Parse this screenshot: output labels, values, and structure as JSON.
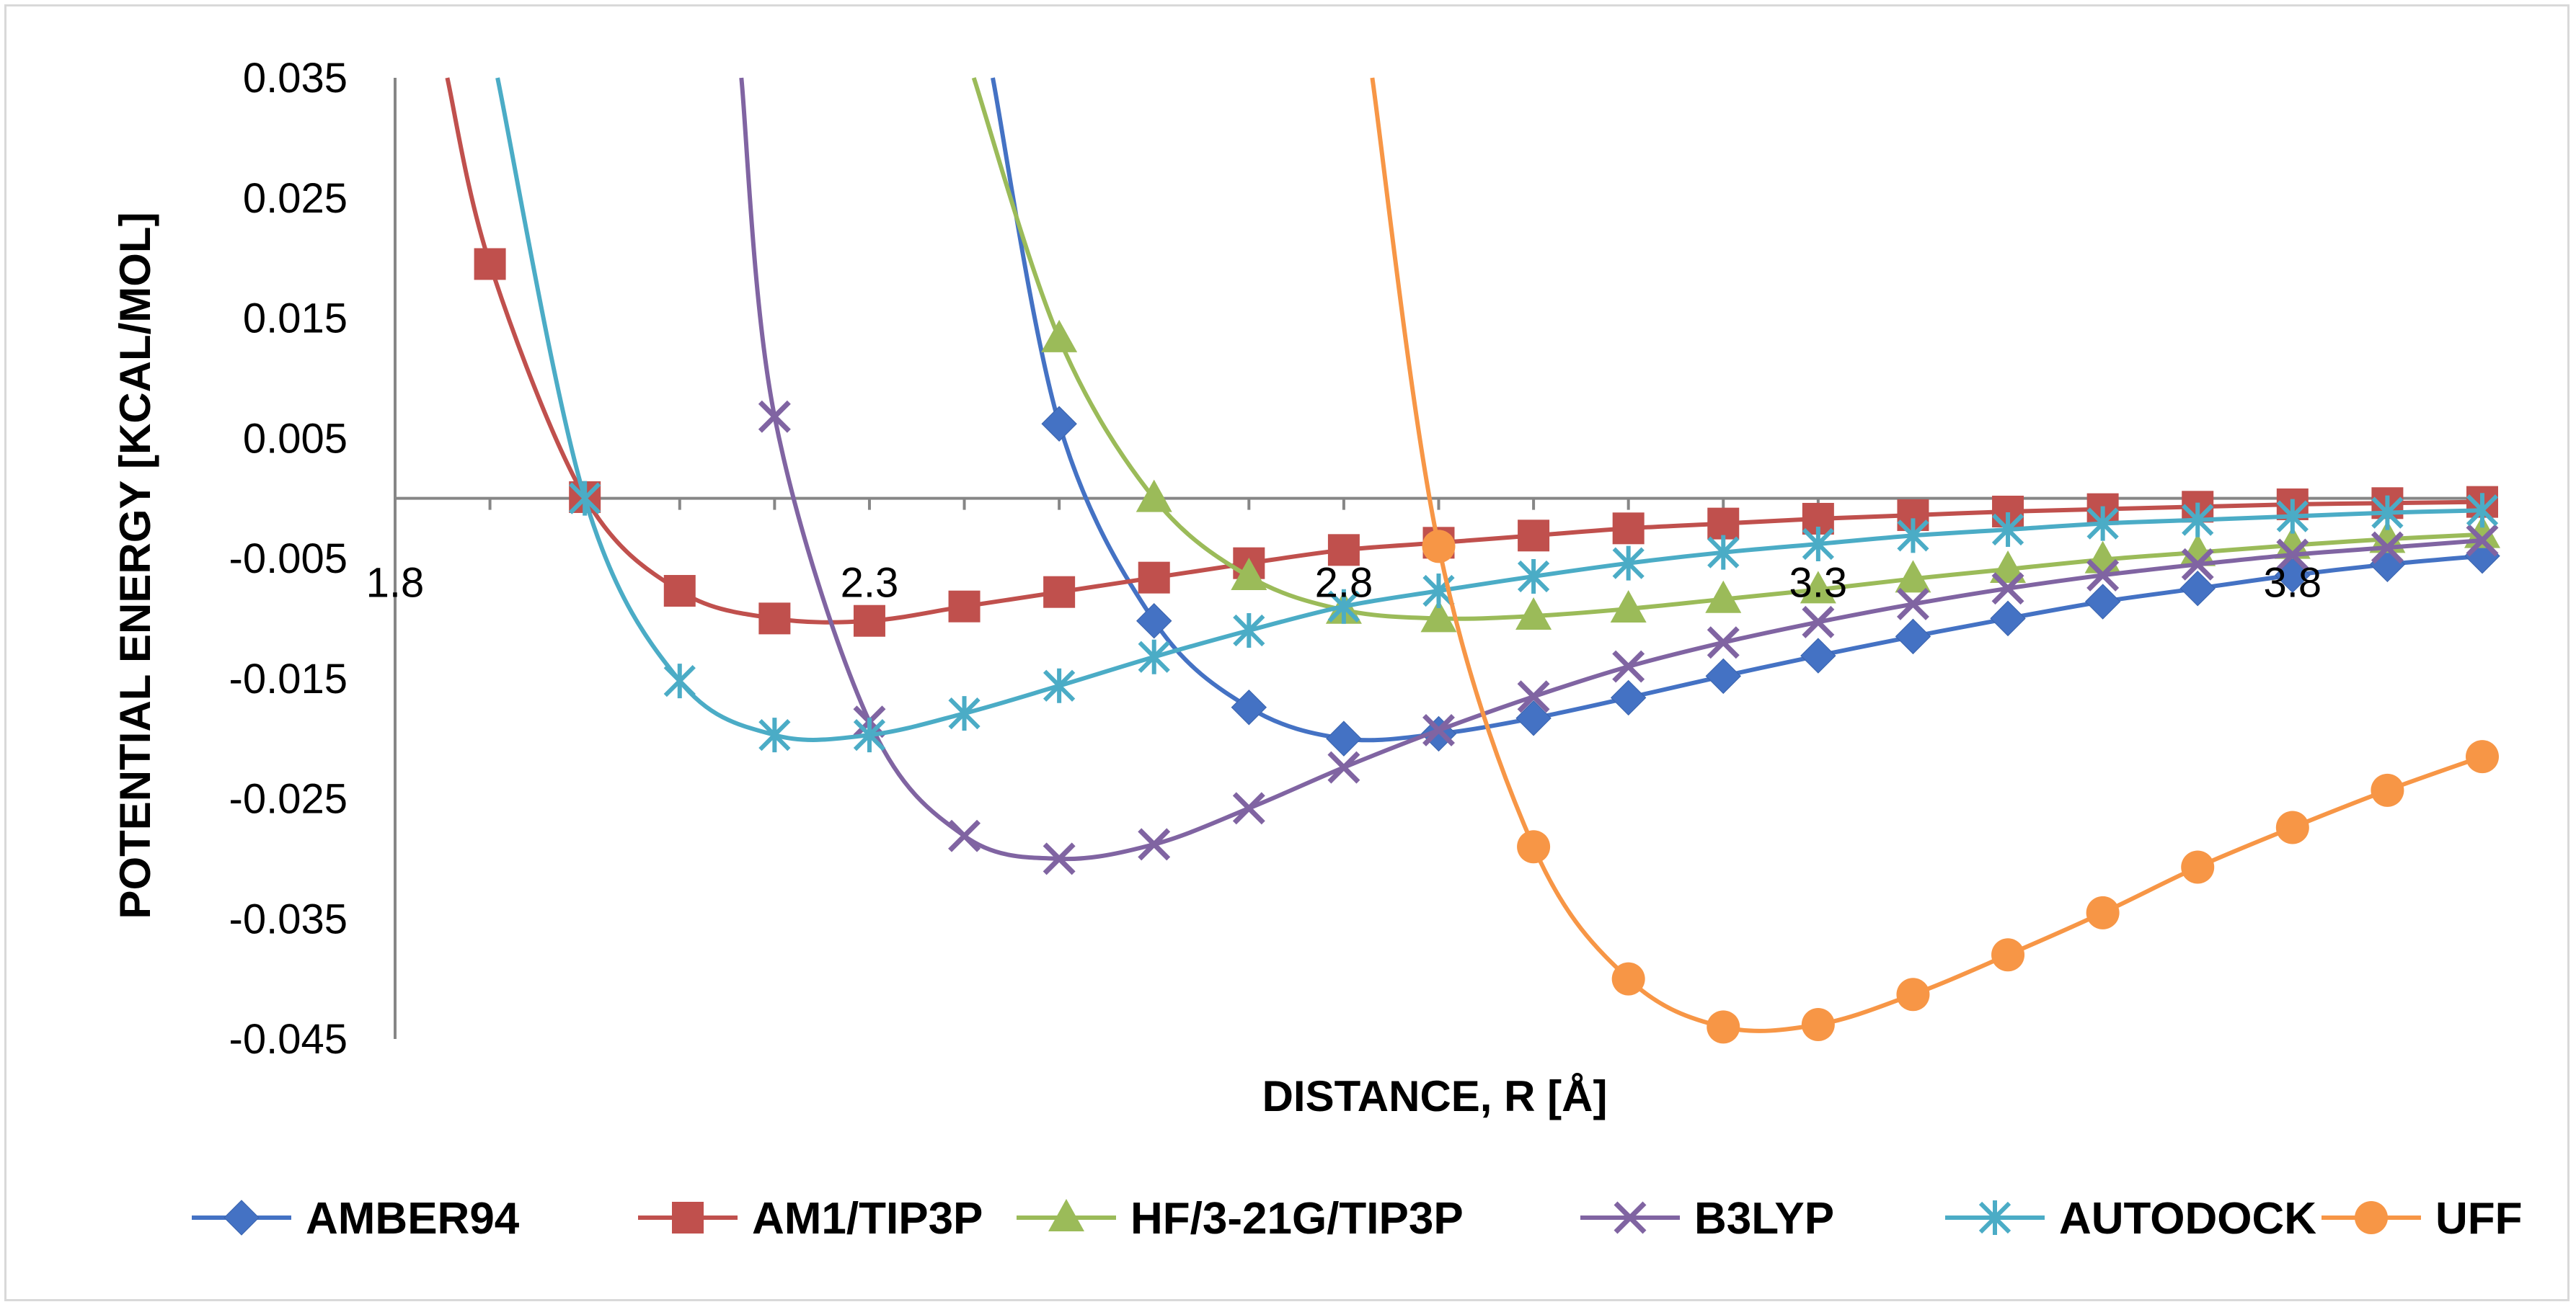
{
  "chart_data": {
    "type": "line",
    "title": "",
    "xlabel": "DISTANCE, R [Å]",
    "ylabel": "POTENTIAL ENERGY [KCAL/MOL]",
    "xlim": [
      1.8,
      4.0
    ],
    "ylim": [
      -0.045,
      0.035
    ],
    "x_ticks": [
      "1.8",
      "2.3",
      "2.8",
      "3.3",
      "3.8"
    ],
    "y_ticks": [
      "0.035",
      "0.025",
      "0.015",
      "0.005",
      "-0.005",
      "-0.015",
      "-0.025",
      "-0.035",
      "-0.045"
    ],
    "x": [
      1.9,
      2.0,
      2.1,
      2.2,
      2.3,
      2.4,
      2.5,
      2.6,
      2.7,
      2.8,
      2.9,
      3.0,
      3.1,
      3.2,
      3.3,
      3.4,
      3.5,
      3.6,
      3.7,
      3.8,
      3.9,
      4.0
    ],
    "series": [
      {
        "name": "AMBER94",
        "color": "#4472C4",
        "marker": "diamond",
        "points": [
          [
            2.5,
            0.0062
          ],
          [
            2.6,
            -0.0102
          ],
          [
            2.7,
            -0.0174
          ],
          [
            2.8,
            -0.02
          ],
          [
            2.9,
            -0.0196
          ],
          [
            3.0,
            -0.0183
          ],
          [
            3.1,
            -0.0166
          ],
          [
            3.2,
            -0.0148
          ],
          [
            3.3,
            -0.0131
          ],
          [
            3.4,
            -0.0115
          ],
          [
            3.5,
            -0.01
          ],
          [
            3.6,
            -0.0086
          ],
          [
            3.7,
            -0.0075
          ],
          [
            3.8,
            -0.0064
          ],
          [
            3.9,
            -0.0055
          ],
          [
            4.0,
            -0.0048
          ]
        ],
        "curve": [
          [
            2.43,
            0.035
          ],
          [
            2.5,
            0.0062
          ],
          [
            2.6,
            -0.0102
          ],
          [
            2.7,
            -0.0174
          ],
          [
            2.8,
            -0.02
          ],
          [
            2.9,
            -0.0196
          ],
          [
            3.0,
            -0.0183
          ],
          [
            3.1,
            -0.0166
          ],
          [
            3.2,
            -0.0148
          ],
          [
            3.3,
            -0.0131
          ],
          [
            3.4,
            -0.0115
          ],
          [
            3.5,
            -0.01
          ],
          [
            3.6,
            -0.0086
          ],
          [
            3.7,
            -0.0075
          ],
          [
            3.8,
            -0.0064
          ],
          [
            3.9,
            -0.0055
          ],
          [
            4.0,
            -0.0048
          ]
        ]
      },
      {
        "name": "AM1/TIP3P",
        "color": "#C0504D",
        "marker": "square",
        "points": [
          [
            1.9,
            0.0195
          ],
          [
            2.0,
            0.0001
          ],
          [
            2.1,
            -0.0077
          ],
          [
            2.2,
            -0.01
          ],
          [
            2.3,
            -0.0102
          ],
          [
            2.4,
            -0.009
          ],
          [
            2.5,
            -0.0078
          ],
          [
            2.6,
            -0.0066
          ],
          [
            2.7,
            -0.0054
          ],
          [
            2.8,
            -0.0043
          ],
          [
            2.9,
            -0.0037
          ],
          [
            3.0,
            -0.0031
          ],
          [
            3.1,
            -0.0025
          ],
          [
            3.2,
            -0.0021
          ],
          [
            3.3,
            -0.0017
          ],
          [
            3.4,
            -0.0014
          ],
          [
            3.5,
            -0.0011
          ],
          [
            3.6,
            -0.0009
          ],
          [
            3.7,
            -0.0007
          ],
          [
            3.8,
            -0.0005
          ],
          [
            3.9,
            -0.0004
          ],
          [
            4.0,
            -0.0003
          ]
        ],
        "curve": [
          [
            1.855,
            0.035
          ],
          [
            1.9,
            0.0195
          ],
          [
            2.0,
            0.0001
          ],
          [
            2.1,
            -0.0077
          ],
          [
            2.2,
            -0.01
          ],
          [
            2.3,
            -0.0102
          ],
          [
            2.4,
            -0.009
          ],
          [
            2.5,
            -0.0078
          ],
          [
            2.6,
            -0.0066
          ],
          [
            2.7,
            -0.0054
          ],
          [
            2.8,
            -0.0043
          ],
          [
            2.9,
            -0.0037
          ],
          [
            3.0,
            -0.0031
          ],
          [
            3.1,
            -0.0025
          ],
          [
            3.2,
            -0.0021
          ],
          [
            3.3,
            -0.0017
          ],
          [
            3.4,
            -0.0014
          ],
          [
            3.5,
            -0.0011
          ],
          [
            3.6,
            -0.0009
          ],
          [
            3.7,
            -0.0007
          ],
          [
            3.8,
            -0.0005
          ],
          [
            3.9,
            -0.0004
          ],
          [
            4.0,
            -0.0003
          ]
        ]
      },
      {
        "name": "HF/3-21G/TIP3P",
        "color": "#9BBB59",
        "marker": "triangle",
        "points": [
          [
            2.5,
            0.0133
          ],
          [
            2.6,
            0.0
          ],
          [
            2.7,
            -0.0065
          ],
          [
            2.8,
            -0.0093
          ],
          [
            2.9,
            -0.01
          ],
          [
            3.0,
            -0.0098
          ],
          [
            3.1,
            -0.0092
          ],
          [
            3.2,
            -0.0084
          ],
          [
            3.3,
            -0.0076
          ],
          [
            3.4,
            -0.0067
          ],
          [
            3.5,
            -0.0059
          ],
          [
            3.6,
            -0.0051
          ],
          [
            3.7,
            -0.0045
          ],
          [
            3.8,
            -0.0039
          ],
          [
            3.9,
            -0.0034
          ],
          [
            4.0,
            -0.003
          ]
        ],
        "curve": [
          [
            2.41,
            0.035
          ],
          [
            2.5,
            0.0133
          ],
          [
            2.6,
            0.0
          ],
          [
            2.7,
            -0.0065
          ],
          [
            2.8,
            -0.0093
          ],
          [
            2.9,
            -0.01
          ],
          [
            3.0,
            -0.0098
          ],
          [
            3.1,
            -0.0092
          ],
          [
            3.2,
            -0.0084
          ],
          [
            3.3,
            -0.0076
          ],
          [
            3.4,
            -0.0067
          ],
          [
            3.5,
            -0.0059
          ],
          [
            3.6,
            -0.0051
          ],
          [
            3.7,
            -0.0045
          ],
          [
            3.8,
            -0.0039
          ],
          [
            3.9,
            -0.0034
          ],
          [
            4.0,
            -0.003
          ]
        ]
      },
      {
        "name": "B3LYP",
        "color": "#8064A2",
        "marker": "x",
        "points": [
          [
            2.2,
            0.0068
          ],
          [
            2.3,
            -0.0186
          ],
          [
            2.4,
            -0.0281
          ],
          [
            2.5,
            -0.03
          ],
          [
            2.6,
            -0.0288
          ],
          [
            2.7,
            -0.0258
          ],
          [
            2.8,
            -0.0224
          ],
          [
            2.9,
            -0.0193
          ],
          [
            3.0,
            -0.0165
          ],
          [
            3.1,
            -0.014
          ],
          [
            3.2,
            -0.012
          ],
          [
            3.3,
            -0.0103
          ],
          [
            3.4,
            -0.0088
          ],
          [
            3.5,
            -0.0075
          ],
          [
            3.6,
            -0.0064
          ],
          [
            3.7,
            -0.0055
          ],
          [
            3.8,
            -0.0047
          ],
          [
            3.9,
            -0.0041
          ],
          [
            4.0,
            -0.0035
          ]
        ],
        "curve": [
          [
            2.165,
            0.035
          ],
          [
            2.2,
            0.0068
          ],
          [
            2.3,
            -0.0186
          ],
          [
            2.4,
            -0.0281
          ],
          [
            2.5,
            -0.03
          ],
          [
            2.6,
            -0.0288
          ],
          [
            2.7,
            -0.0258
          ],
          [
            2.8,
            -0.0224
          ],
          [
            2.9,
            -0.0193
          ],
          [
            3.0,
            -0.0165
          ],
          [
            3.1,
            -0.014
          ],
          [
            3.2,
            -0.012
          ],
          [
            3.3,
            -0.0103
          ],
          [
            3.4,
            -0.0088
          ],
          [
            3.5,
            -0.0075
          ],
          [
            3.6,
            -0.0064
          ],
          [
            3.7,
            -0.0055
          ],
          [
            3.8,
            -0.0047
          ],
          [
            3.9,
            -0.0041
          ],
          [
            4.0,
            -0.0035
          ]
        ]
      },
      {
        "name": "AUTODOCK",
        "color": "#4BACC6",
        "marker": "asterisk",
        "points": [
          [
            2.0,
            0.0
          ],
          [
            2.1,
            -0.0152
          ],
          [
            2.2,
            -0.0197
          ],
          [
            2.3,
            -0.0197
          ],
          [
            2.4,
            -0.0179
          ],
          [
            2.5,
            -0.0156
          ],
          [
            2.6,
            -0.0132
          ],
          [
            2.7,
            -0.011
          ],
          [
            2.8,
            -0.009
          ],
          [
            2.9,
            -0.0077
          ],
          [
            3.0,
            -0.0065
          ],
          [
            3.1,
            -0.0054
          ],
          [
            3.2,
            -0.0045
          ],
          [
            3.3,
            -0.0038
          ],
          [
            3.4,
            -0.0031
          ],
          [
            3.5,
            -0.0026
          ],
          [
            3.6,
            -0.0021
          ],
          [
            3.7,
            -0.0018
          ],
          [
            3.8,
            -0.0015
          ],
          [
            3.9,
            -0.0012
          ],
          [
            4.0,
            -0.001
          ]
        ],
        "curve": [
          [
            1.908,
            0.035
          ],
          [
            2.0,
            0.0
          ],
          [
            2.1,
            -0.0152
          ],
          [
            2.2,
            -0.0197
          ],
          [
            2.3,
            -0.0197
          ],
          [
            2.4,
            -0.0179
          ],
          [
            2.5,
            -0.0156
          ],
          [
            2.6,
            -0.0132
          ],
          [
            2.7,
            -0.011
          ],
          [
            2.8,
            -0.009
          ],
          [
            2.9,
            -0.0077
          ],
          [
            3.0,
            -0.0065
          ],
          [
            3.1,
            -0.0054
          ],
          [
            3.2,
            -0.0045
          ],
          [
            3.3,
            -0.0038
          ],
          [
            3.4,
            -0.0031
          ],
          [
            3.5,
            -0.0026
          ],
          [
            3.6,
            -0.0021
          ],
          [
            3.7,
            -0.0018
          ],
          [
            3.8,
            -0.0015
          ],
          [
            3.9,
            -0.0012
          ],
          [
            4.0,
            -0.001
          ]
        ]
      },
      {
        "name": "UFF",
        "color": "#F79646",
        "marker": "circle",
        "points": [
          [
            2.9,
            -0.004
          ],
          [
            3.0,
            -0.029
          ],
          [
            3.1,
            -0.04
          ],
          [
            3.2,
            -0.044
          ],
          [
            3.3,
            -0.0438
          ],
          [
            3.4,
            -0.0413
          ],
          [
            3.5,
            -0.038
          ],
          [
            3.6,
            -0.0345
          ],
          [
            3.7,
            -0.0307
          ],
          [
            3.8,
            -0.0274
          ],
          [
            3.9,
            -0.0243
          ],
          [
            4.0,
            -0.0215
          ]
        ],
        "curve": [
          [
            2.83,
            0.035
          ],
          [
            2.9,
            -0.004
          ],
          [
            3.0,
            -0.029
          ],
          [
            3.1,
            -0.04
          ],
          [
            3.2,
            -0.044
          ],
          [
            3.3,
            -0.0438
          ],
          [
            3.4,
            -0.0413
          ],
          [
            3.5,
            -0.038
          ],
          [
            3.6,
            -0.0345
          ],
          [
            3.7,
            -0.0307
          ],
          [
            3.8,
            -0.0274
          ],
          [
            3.9,
            -0.0243
          ],
          [
            4.0,
            -0.0215
          ]
        ]
      }
    ],
    "grid": false,
    "legend": "bottom"
  }
}
